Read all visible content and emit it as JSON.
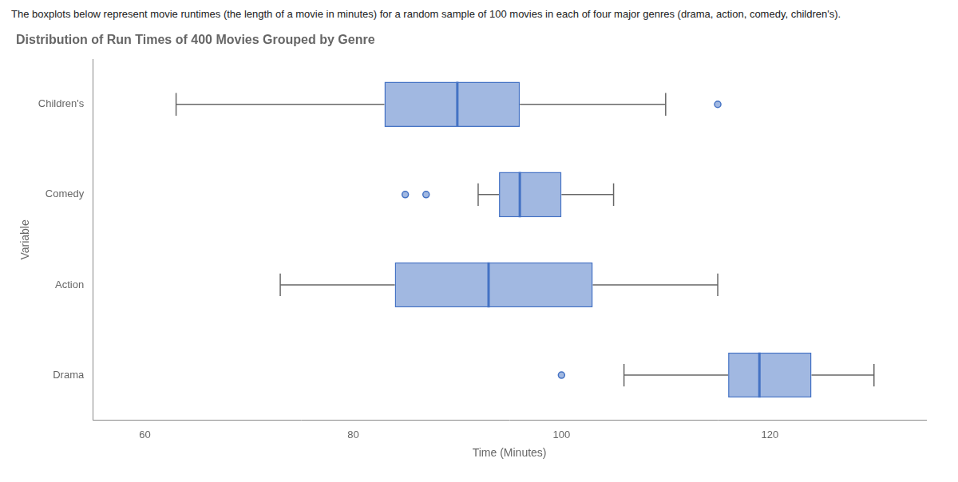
{
  "chart_data": {
    "type": "boxplot",
    "orientation": "horizontal",
    "subtitle": "The boxplots below represent movie runtimes (the length of a movie in minutes) for a random sample of 100 movies in each of four major genres (drama, action, comedy, children's).",
    "title": "Distribution of Run Times of 400 Movies Grouped by Genre",
    "xlabel": "Time (Minutes)",
    "ylabel": "Variable",
    "categories": [
      "Children's",
      "Comedy",
      "Action",
      "Drama"
    ],
    "stats": [
      {
        "whislo": 63,
        "q1": 83,
        "med": 90,
        "q3": 96,
        "whishi": 110,
        "fliers": [
          115
        ]
      },
      {
        "whislo": 92,
        "q1": 94,
        "med": 96,
        "q3": 100,
        "whishi": 105,
        "fliers": [
          85,
          87
        ]
      },
      {
        "whislo": 73,
        "q1": 84,
        "med": 93,
        "q3": 103,
        "whishi": 115,
        "fliers": []
      },
      {
        "whislo": 106,
        "q1": 116,
        "med": 119,
        "q3": 124,
        "whishi": 130,
        "fliers": [
          100
        ]
      }
    ],
    "color": "#4472c4",
    "xlim": [
      55,
      135
    ],
    "xticks": [
      60,
      80,
      100,
      120
    ],
    "grid": false
  }
}
